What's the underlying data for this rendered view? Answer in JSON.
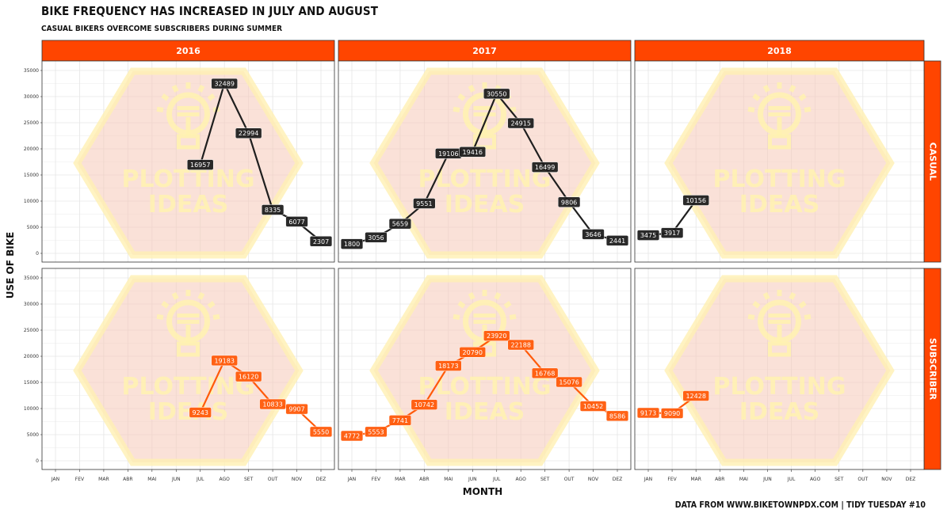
{
  "title": "BIKE FREQUENCY HAS INCREASED IN JULY AND AUGUST",
  "subtitle": "CASUAL BIKERS OVERCOME SUBSCRIBERS DURING SUMMER",
  "caption": "DATA FROM WWW.BIKETOWNPDX.COM  |  TIDY TUESDAY #10",
  "watermark": {
    "line1": "PLOTTING",
    "line2": "IDEAS"
  },
  "colors": {
    "strip": "#ff4500",
    "casual": "#1f1f1f",
    "subscriber": "#ff5a0a",
    "hex_fill": "#f6c9b8",
    "hex_border": "#fff0b3",
    "watermark": "#fff2b0",
    "grid": "#e6e6e6"
  },
  "chart_data": {
    "type": "line",
    "title": "BIKE FREQUENCY HAS INCREASED IN JULY AND AUGUST",
    "subtitle": "CASUAL BIKERS OVERCOME SUBSCRIBERS DURING SUMMER",
    "xlabel": "MONTH",
    "ylabel": "USE OF BIKE",
    "ylim": [
      0,
      35000
    ],
    "yticks": [
      0,
      5000,
      10000,
      15000,
      20000,
      25000,
      30000,
      35000
    ],
    "months": [
      "JAN",
      "FEV",
      "MAR",
      "ABR",
      "MAI",
      "JUN",
      "JUL",
      "AGO",
      "SET",
      "OUT",
      "NOV",
      "DEZ"
    ],
    "grid": true,
    "facet_columns": [
      "2016",
      "2017",
      "2018"
    ],
    "facet_rows": [
      "CASUAL",
      "SUBSCRIBER"
    ],
    "panels": [
      {
        "year": "2016",
        "type": "CASUAL",
        "points": [
          {
            "x": "JUL",
            "y": 16957
          },
          {
            "x": "AGO",
            "y": 32489
          },
          {
            "x": "SET",
            "y": 22994
          },
          {
            "x": "OUT",
            "y": 8335
          },
          {
            "x": "NOV",
            "y": 6077
          },
          {
            "x": "DEZ",
            "y": 2307
          }
        ]
      },
      {
        "year": "2017",
        "type": "CASUAL",
        "points": [
          {
            "x": "JAN",
            "y": 1800
          },
          {
            "x": "FEV",
            "y": 3056
          },
          {
            "x": "MAR",
            "y": 5659
          },
          {
            "x": "ABR",
            "y": 9551
          },
          {
            "x": "MAI",
            "y": 19106
          },
          {
            "x": "JUN",
            "y": 19416
          },
          {
            "x": "JUL",
            "y": 30550
          },
          {
            "x": "AGO",
            "y": 24915
          },
          {
            "x": "SET",
            "y": 16499
          },
          {
            "x": "OUT",
            "y": 9806
          },
          {
            "x": "NOV",
            "y": 3646
          },
          {
            "x": "DEZ",
            "y": 2441
          }
        ]
      },
      {
        "year": "2018",
        "type": "CASUAL",
        "points": [
          {
            "x": "JAN",
            "y": 3475
          },
          {
            "x": "FEV",
            "y": 3917
          },
          {
            "x": "MAR",
            "y": 10156
          }
        ]
      },
      {
        "year": "2016",
        "type": "SUBSCRIBER",
        "points": [
          {
            "x": "JUL",
            "y": 9243
          },
          {
            "x": "AGO",
            "y": 19183
          },
          {
            "x": "SET",
            "y": 16120
          },
          {
            "x": "OUT",
            "y": 10833
          },
          {
            "x": "NOV",
            "y": 9907
          },
          {
            "x": "DEZ",
            "y": 5550
          }
        ]
      },
      {
        "year": "2017",
        "type": "SUBSCRIBER",
        "points": [
          {
            "x": "JAN",
            "y": 4772
          },
          {
            "x": "FEV",
            "y": 5553
          },
          {
            "x": "MAR",
            "y": 7741
          },
          {
            "x": "ABR",
            "y": 10742
          },
          {
            "x": "MAI",
            "y": 18173
          },
          {
            "x": "JUN",
            "y": 20790
          },
          {
            "x": "JUL",
            "y": 23920
          },
          {
            "x": "AGO",
            "y": 22188
          },
          {
            "x": "SET",
            "y": 16768
          },
          {
            "x": "OUT",
            "y": 15076
          },
          {
            "x": "NOV",
            "y": 10452
          },
          {
            "x": "DEZ",
            "y": 8586
          }
        ]
      },
      {
        "year": "2018",
        "type": "SUBSCRIBER",
        "points": [
          {
            "x": "JAN",
            "y": 9173
          },
          {
            "x": "FEV",
            "y": 9090
          },
          {
            "x": "MAR",
            "y": 12428
          }
        ]
      }
    ]
  }
}
